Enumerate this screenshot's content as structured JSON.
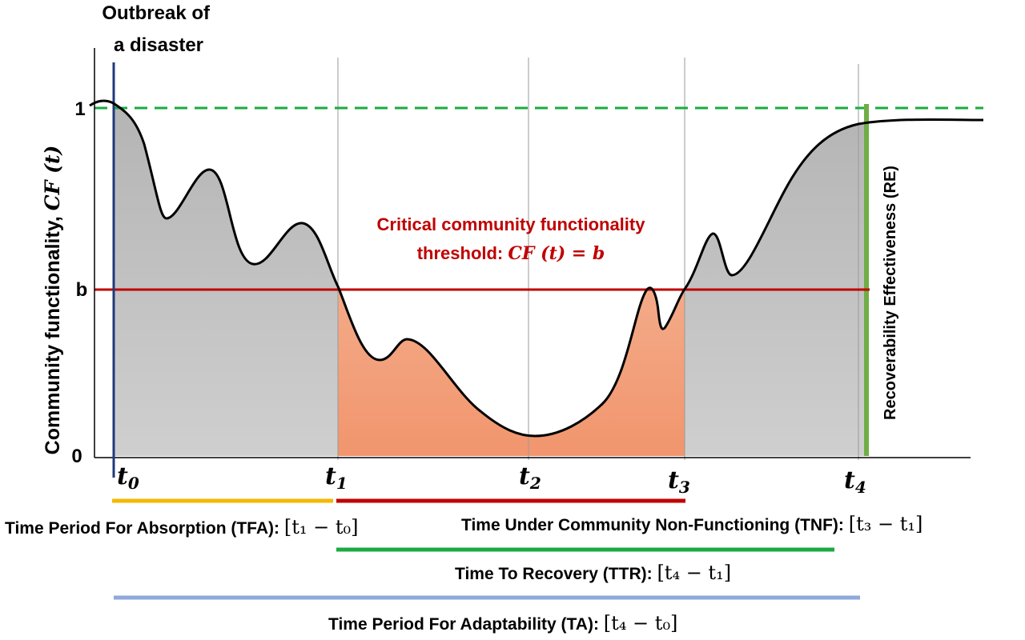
{
  "outbreak_label": [
    "Outbreak of",
    "a disaster"
  ],
  "y_axis": {
    "label_text": "Community functionality, ",
    "label_math": "CF (t)",
    "ticks": [
      "1",
      "b",
      "0"
    ]
  },
  "time_points": [
    {
      "sym": "t",
      "sub": "0"
    },
    {
      "sym": "t",
      "sub": "1"
    },
    {
      "sym": "t",
      "sub": "2"
    },
    {
      "sym": "t",
      "sub": "3"
    },
    {
      "sym": "t",
      "sub": "4"
    }
  ],
  "threshold": {
    "line1": "Critical community functionality",
    "line2_text": "threshold: ",
    "line2_math": "CF (t) =  b"
  },
  "recoverability_label": "Recoverability Effectiveness (RE)",
  "periods": {
    "tfa": {
      "text": "Time Period For Absorption (TFA): ",
      "math": "[t₁ − t₀]"
    },
    "tnf": {
      "text": "Time Under Community Non-Functioning (TNF): ",
      "math": "[t₃ − t₁]"
    },
    "ttr": {
      "text": "Time To Recovery (TTR): ",
      "math": "[t₄ − t₁]"
    },
    "ta": {
      "text": "Time Period For Adaptability (TA): ",
      "math": "[t₄ − t₀]"
    }
  },
  "colors": {
    "curve": "#000000",
    "grey_fill": "#c6c6c6",
    "orange_fill": "#f2a07e",
    "full_function_line": "#1aab40",
    "threshold_line": "#c00000",
    "outbreak_line": "#1f3a7a",
    "re_bar": "#70ad47",
    "tfa_bar": "#f5b800",
    "tnf_bar": "#c00000",
    "ttr_bar": "#1aab40",
    "ta_bar": "#8ea9db",
    "threshold_text": "#c00000"
  }
}
